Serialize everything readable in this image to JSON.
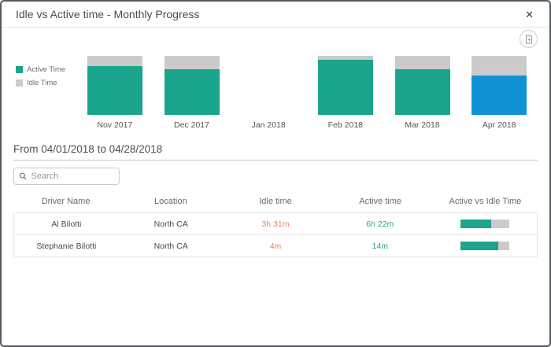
{
  "window": {
    "title": "Idle vs Active time - Monthly Progress",
    "close_glyph": "✕"
  },
  "icons": {
    "close": "close-icon",
    "export": "export-image-icon",
    "search": "search-icon"
  },
  "colors": {
    "active": "#1aa58c",
    "idle": "#cbcbcb",
    "highlight": "#1191d6",
    "idle_text": "#e8835a",
    "active_text": "#21a78f"
  },
  "chart_data": {
    "type": "bar",
    "stacked": true,
    "unit": "percent_of_month_total",
    "categories": [
      "Nov 2017",
      "Dec 2017",
      "Jan 2018",
      "Feb 2018",
      "Mar 2018",
      "Apr 2018"
    ],
    "series": [
      {
        "name": "Active Time",
        "values": [
          83,
          78,
          null,
          94,
          78,
          67
        ]
      },
      {
        "name": "Idle Time",
        "values": [
          17,
          22,
          null,
          6,
          22,
          33
        ]
      }
    ],
    "highlighted_month": "Apr 2018",
    "legend_position": "left",
    "ylim": [
      0,
      100
    ],
    "grid": false
  },
  "period": {
    "label": "From 04/01/2018 to 04/28/2018"
  },
  "search": {
    "placeholder": "Search"
  },
  "table": {
    "columns": [
      "Driver Name",
      "Location",
      "Idle time",
      "Active time",
      "Active vs Idle Time"
    ],
    "rows": [
      {
        "driver": "Al Bilotti",
        "location": "North CA",
        "idle_time": "3h 31m",
        "active_time": "6h 22m",
        "active_pct": 64
      },
      {
        "driver": "Stephanie Bilotti",
        "location": "North CA",
        "idle_time": "4m",
        "active_time": "14m",
        "active_pct": 78
      }
    ]
  }
}
